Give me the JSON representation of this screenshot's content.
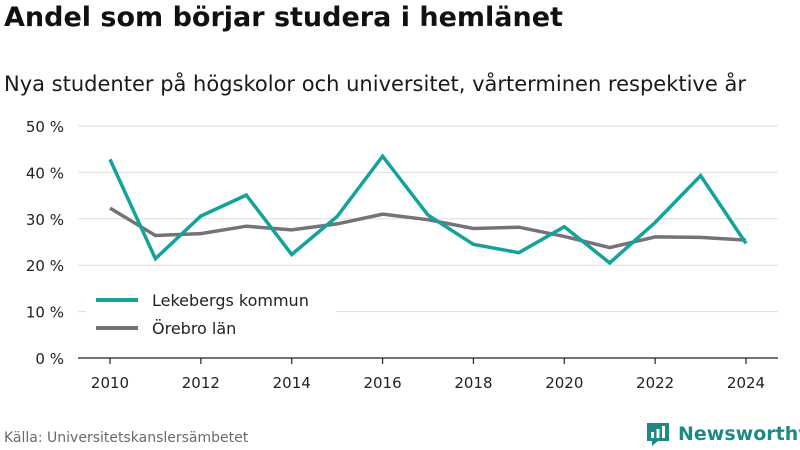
{
  "header": {
    "title": "Andel som börjar studera i hemlänet",
    "subtitle": "Nya studenter på högskolor och universitet, vårterminen respektive år"
  },
  "footer": {
    "source": "Källa: Universitetskanslersämbetet",
    "brand": "Newsworthy"
  },
  "colors": {
    "lekeberg": "#13a39a",
    "orebro": "#75727a",
    "grid": "#dddddd",
    "axis": "#222222",
    "brand": "#1f8a85"
  },
  "chart_data": {
    "type": "line",
    "x": [
      2010,
      2011,
      2012,
      2013,
      2014,
      2015,
      2016,
      2017,
      2018,
      2019,
      2020,
      2021,
      2022,
      2023,
      2024
    ],
    "series": [
      {
        "name": "Lekebergs kommun",
        "values": [
          42.8,
          21.4,
          30.6,
          35.1,
          22.3,
          30.5,
          43.5,
          30.8,
          24.5,
          22.7,
          28.3,
          20.5,
          29.2,
          39.3,
          24.7
        ]
      },
      {
        "name": "Örebro län",
        "values": [
          32.3,
          26.4,
          26.8,
          28.4,
          27.6,
          28.9,
          31.0,
          29.8,
          27.9,
          28.2,
          26.2,
          23.8,
          26.1,
          26.0,
          25.4
        ]
      }
    ],
    "ylim": [
      0,
      50
    ],
    "yticks": [
      0,
      10,
      20,
      30,
      40,
      50
    ],
    "ytick_labels": [
      "0 %",
      "10 %",
      "20 %",
      "30 %",
      "40 %",
      "50 %"
    ],
    "xticks": [
      2010,
      2012,
      2014,
      2016,
      2018,
      2020,
      2022,
      2024
    ],
    "xtick_labels": [
      "2010",
      "2012",
      "2014",
      "2016",
      "2018",
      "2020",
      "2022",
      "2024"
    ],
    "grid": true,
    "legend": "bottom-left"
  }
}
